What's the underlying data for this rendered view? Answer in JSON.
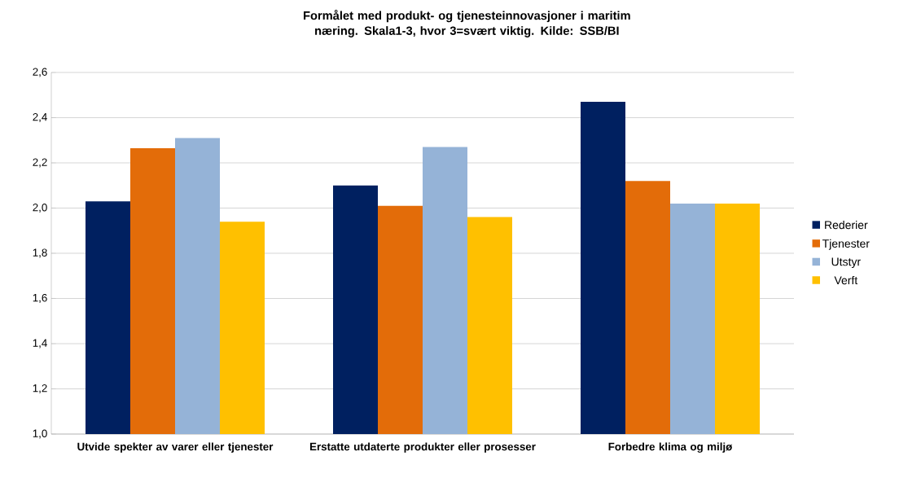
{
  "chart_data": {
    "type": "bar",
    "title": "Formålet med produkt- og tjenesteinnovasjoner i maritim næring. Skala1-3, hvor 3=svært viktig. Kilde: SSB/BI",
    "categories": [
      "Utvide spekter av varer eller tjenester",
      "Erstatte utdaterte produkter eller prosesser",
      "Forbedre klima og miljø"
    ],
    "series": [
      {
        "name": "Rederier",
        "color": "#002060",
        "values": [
          2.03,
          2.1,
          2.47
        ]
      },
      {
        "name": "Tjenester",
        "color": "#e36c09",
        "values": [
          2.265,
          2.01,
          2.12
        ]
      },
      {
        "name": "Utstyr",
        "color": "#95b3d7",
        "values": [
          2.31,
          2.27,
          2.02
        ]
      },
      {
        "name": "Verft",
        "color": "#ffc000",
        "values": [
          1.94,
          1.96,
          2.02
        ]
      }
    ],
    "ylim": [
      1.0,
      2.6
    ],
    "yticks": [
      {
        "value": 1.0,
        "label": "1,0"
      },
      {
        "value": 1.2,
        "label": "1,2"
      },
      {
        "value": 1.4,
        "label": "1,4"
      },
      {
        "value": 1.6,
        "label": "1,6"
      },
      {
        "value": 1.8,
        "label": "1,8"
      },
      {
        "value": 2.0,
        "label": "2,0"
      },
      {
        "value": 2.2,
        "label": "2,2"
      },
      {
        "value": 2.4,
        "label": "2,4"
      },
      {
        "value": 2.6,
        "label": "2,6"
      }
    ],
    "grid": "y",
    "legend": "right"
  }
}
